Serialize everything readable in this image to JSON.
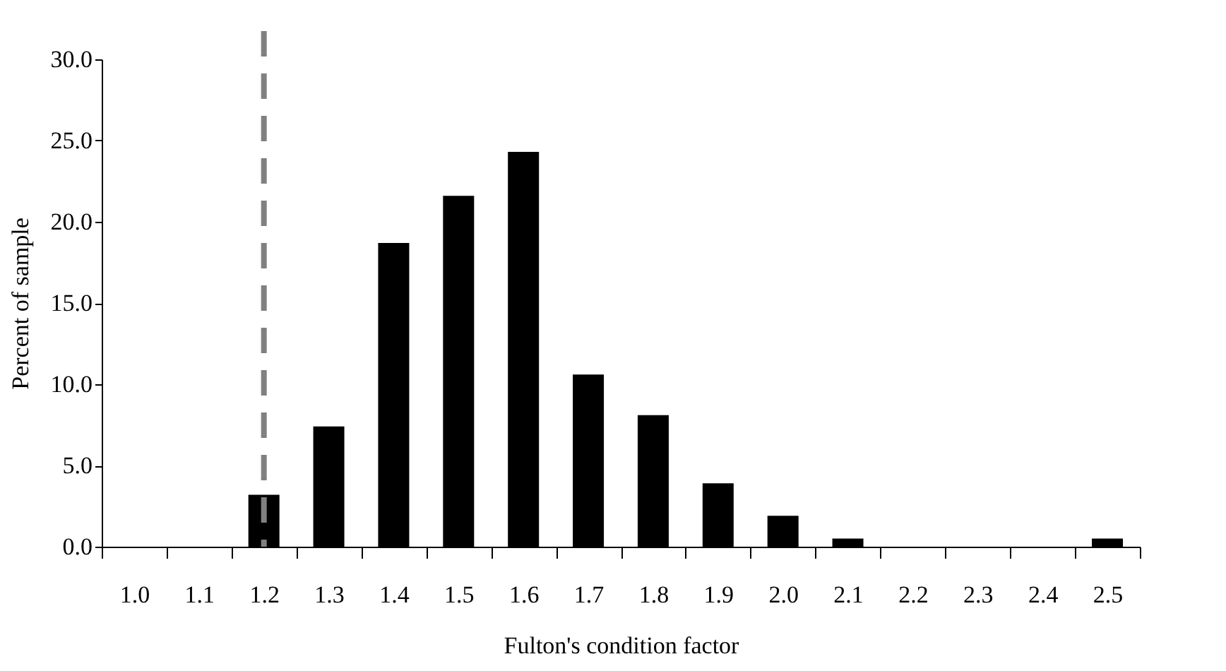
{
  "chart_data": {
    "type": "bar",
    "xlabel": "Fulton's condition factor",
    "ylabel": "Percent of sample",
    "categories": [
      "1.0",
      "1.1",
      "1.2",
      "1.3",
      "1.4",
      "1.5",
      "1.6",
      "1.7",
      "1.8",
      "1.9",
      "2.0",
      "2.1",
      "2.2",
      "2.3",
      "2.4",
      "2.5"
    ],
    "values": [
      0,
      0,
      3.2,
      7.4,
      18.7,
      21.6,
      24.3,
      10.6,
      8.1,
      3.9,
      1.9,
      0.5,
      0,
      0,
      0,
      0.5
    ],
    "color": "#000000",
    "ylim": [
      0,
      30
    ],
    "yticks": [
      {
        "value": 0,
        "label": "0.0"
      },
      {
        "value": 5,
        "label": "5.0"
      },
      {
        "value": 10,
        "label": "10.0"
      },
      {
        "value": 15,
        "label": "15.0"
      },
      {
        "value": 20,
        "label": "20.0"
      },
      {
        "value": 25,
        "label": "25.0"
      },
      {
        "value": 30,
        "label": "30.0"
      }
    ],
    "grid": false,
    "ref_lines": [
      {
        "axis": "x",
        "value": "1.2",
        "color": "#808080",
        "line_style": "dashed"
      }
    ]
  }
}
